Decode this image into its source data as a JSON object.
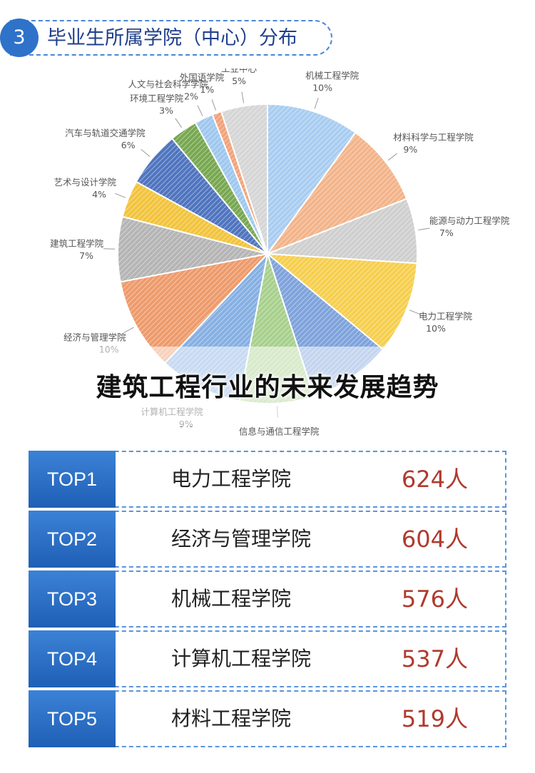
{
  "header": {
    "number": "3",
    "title": "毕业生所属学院（中心）分布"
  },
  "overlay": {
    "title": "建筑工程行业的未来发展趋势"
  },
  "colors": {
    "accent": "#2f72c9",
    "count": "#b03a2e"
  },
  "chart_data": {
    "type": "pie",
    "title": "",
    "slices": [
      {
        "label": "机械工程学院",
        "value": 10,
        "pct": "10%",
        "color": "#a9cdf1"
      },
      {
        "label": "材料科学与工程学院",
        "value": 9,
        "pct": "9%",
        "color": "#f3b48a"
      },
      {
        "label": "能源与动力工程学院",
        "value": 7,
        "pct": "7%",
        "color": "#cfcfcf"
      },
      {
        "label": "电力工程学院",
        "value": 10,
        "pct": "10%",
        "color": "#f6cf4e"
      },
      {
        "label": "",
        "value": 9,
        "pct": "",
        "color": "#7fa3dc"
      },
      {
        "label": "信息与通信工程学院",
        "value": 8,
        "pct": "8%",
        "color": "#a8d08d"
      },
      {
        "label": "计算机工程学院",
        "value": 9,
        "pct": "9%",
        "color": "#86b0e3"
      },
      {
        "label": "经济与管理学院",
        "value": 10,
        "pct": "10%",
        "color": "#ee9b6c"
      },
      {
        "label": "建筑工程学院",
        "value": 7,
        "pct": "7%",
        "color": "#b5b5b5"
      },
      {
        "label": "艺术与设计学院",
        "value": 4,
        "pct": "4%",
        "color": "#f2c43d"
      },
      {
        "label": "汽车与轨道交通学院",
        "value": 6,
        "pct": "6%",
        "color": "#5075bf"
      },
      {
        "label": "环境工程学院",
        "value": 3,
        "pct": "3%",
        "color": "#78a851"
      },
      {
        "label": "人文与社会科学学院",
        "value": 2,
        "pct": "2%",
        "color": "#9fc8ef"
      },
      {
        "label": "外国语学院",
        "value": 1,
        "pct": "1%",
        "color": "#f2a37a"
      },
      {
        "label": "工业中心",
        "value": 5,
        "pct": "5%",
        "color": "#d6d6d6"
      }
    ]
  },
  "ranking": [
    {
      "rank": "TOP1",
      "school": "电力工程学院",
      "count": "624人"
    },
    {
      "rank": "TOP2",
      "school": "经济与管理学院",
      "count": "604人"
    },
    {
      "rank": "TOP3",
      "school": "机械工程学院",
      "count": "576人"
    },
    {
      "rank": "TOP4",
      "school": "计算机工程学院",
      "count": "537人"
    },
    {
      "rank": "TOP5",
      "school": "材料工程学院",
      "count": "519人"
    }
  ]
}
